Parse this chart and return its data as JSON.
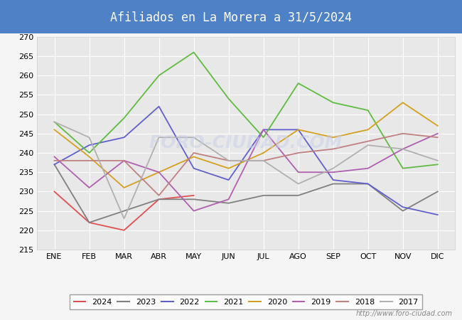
{
  "title": "Afiliados en La Morera a 31/5/2024",
  "title_bg_color": "#4f81c7",
  "title_text_color": "white",
  "ylim": [
    215,
    270
  ],
  "yticks": [
    215,
    220,
    225,
    230,
    235,
    240,
    245,
    250,
    255,
    260,
    265,
    270
  ],
  "months": [
    "ENE",
    "FEB",
    "MAR",
    "ABR",
    "MAY",
    "JUN",
    "JUL",
    "AGO",
    "SEP",
    "OCT",
    "NOV",
    "DIC"
  ],
  "watermark": "http://www.foro-ciudad.com",
  "series": {
    "2024": {
      "color": "#e05050",
      "data": [
        230,
        222,
        220,
        228,
        229,
        null,
        null,
        null,
        null,
        null,
        null,
        null
      ]
    },
    "2023": {
      "color": "#808080",
      "data": [
        237,
        222,
        225,
        228,
        228,
        227,
        229,
        229,
        232,
        232,
        225,
        230
      ]
    },
    "2022": {
      "color": "#6060cc",
      "data": [
        237,
        242,
        244,
        252,
        236,
        233,
        246,
        246,
        233,
        232,
        226,
        224
      ]
    },
    "2021": {
      "color": "#60bb40",
      "data": [
        248,
        240,
        249,
        260,
        266,
        254,
        244,
        258,
        253,
        251,
        236,
        237
      ]
    },
    "2020": {
      "color": "#d4a020",
      "data": [
        246,
        239,
        231,
        235,
        239,
        236,
        240,
        246,
        244,
        246,
        253,
        247
      ]
    },
    "2019": {
      "color": "#b060b0",
      "data": [
        239,
        231,
        238,
        235,
        225,
        228,
        246,
        235,
        235,
        236,
        241,
        245
      ]
    },
    "2018": {
      "color": "#c08080",
      "data": [
        238,
        238,
        238,
        229,
        240,
        238,
        238,
        240,
        241,
        243,
        245,
        244
      ]
    },
    "2017": {
      "color": "#b0b0b0",
      "data": [
        248,
        244,
        223,
        244,
        244,
        238,
        238,
        232,
        236,
        242,
        241,
        238
      ]
    }
  },
  "legend_order": [
    "2024",
    "2023",
    "2022",
    "2021",
    "2020",
    "2019",
    "2018",
    "2017"
  ],
  "plot_bg_color": "#e8e8e8",
  "grid_color": "#ffffff"
}
